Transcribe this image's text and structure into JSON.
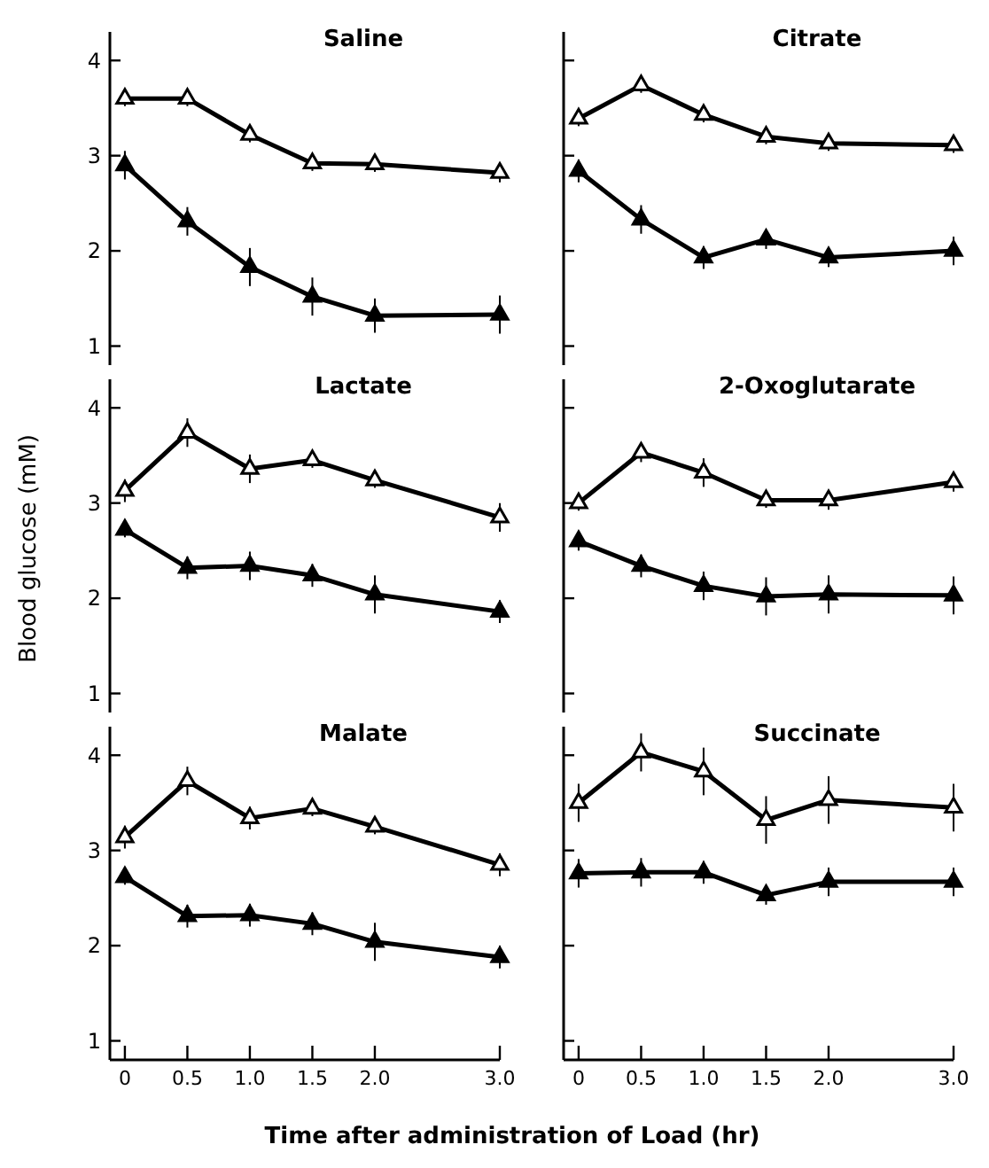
{
  "chart_data": [
    {
      "type": "line",
      "title": "Saline",
      "x": [
        0,
        0.5,
        1,
        1.5,
        2,
        3
      ],
      "xlim": [
        -0.12,
        3
      ],
      "ylim": [
        0.8,
        4.3
      ],
      "yticks": [
        1,
        2,
        3,
        4
      ],
      "tick_labels": "y",
      "marker": "triangle",
      "line_style": "solid",
      "series": [
        {
          "color": "#000000",
          "values": [
            3.6,
            3.6,
            3.22,
            2.92,
            2.91,
            2.82
          ],
          "errors": [
            0.08,
            0.08,
            0.08,
            0.08,
            0.08,
            0.1
          ]
        },
        {
          "color": "#000000",
          "values": [
            2.9,
            2.31,
            1.83,
            1.52,
            1.32,
            1.33
          ],
          "errors": [
            0.15,
            0.15,
            0.2,
            0.2,
            0.18,
            0.2
          ]
        }
      ]
    },
    {
      "type": "line",
      "title": "Citrate",
      "x": [
        0,
        0.5,
        1,
        1.5,
        2,
        3
      ],
      "xlim": [
        -0.12,
        3
      ],
      "ylim": [
        0.8,
        4.3
      ],
      "yticks": [
        1,
        2,
        3,
        4
      ],
      "tick_labels": false,
      "marker": "triangle",
      "line_style": "solid",
      "series": [
        {
          "color": "#000000",
          "values": [
            3.39,
            3.74,
            3.43,
            3.2,
            3.13,
            3.11
          ],
          "errors": [
            0.08,
            0.08,
            0.08,
            0.08,
            0.08,
            0.08
          ]
        },
        {
          "color": "#000000",
          "values": [
            2.84,
            2.33,
            1.93,
            2.12,
            1.93,
            2.0
          ],
          "errors": [
            0.12,
            0.15,
            0.12,
            0.1,
            0.1,
            0.15
          ]
        }
      ]
    },
    {
      "type": "line",
      "title": "Lactate",
      "x": [
        0,
        0.5,
        1,
        1.5,
        2,
        3
      ],
      "xlim": [
        -0.12,
        3
      ],
      "ylim": [
        0.8,
        4.3
      ],
      "yticks": [
        1,
        2,
        3,
        4
      ],
      "tick_labels": "y",
      "marker": "triangle",
      "line_style": "solid",
      "series": [
        {
          "color": "#000000",
          "values": [
            3.13,
            3.74,
            3.36,
            3.45,
            3.24,
            2.85
          ],
          "errors": [
            0.12,
            0.15,
            0.15,
            0.08,
            0.08,
            0.15
          ]
        },
        {
          "color": "#000000",
          "values": [
            2.72,
            2.32,
            2.34,
            2.24,
            2.04,
            1.86
          ],
          "errors": [
            0.08,
            0.12,
            0.15,
            0.12,
            0.2,
            0.12
          ]
        }
      ]
    },
    {
      "type": "line",
      "title": "2-Oxoglutarate",
      "ylabel": "Blood glucose (mM)",
      "x": [
        0,
        0.5,
        1,
        1.5,
        2,
        3
      ],
      "xlim": [
        -0.12,
        3
      ],
      "ylim": [
        0.8,
        4.3
      ],
      "yticks": [
        1,
        2,
        3,
        4
      ],
      "tick_labels": false,
      "marker": "triangle",
      "line_style": "solid",
      "series": [
        {
          "color": "#000000",
          "values": [
            3.0,
            3.53,
            3.32,
            3.03,
            3.03,
            3.22
          ],
          "errors": [
            0.08,
            0.1,
            0.15,
            0.08,
            0.1,
            0.1
          ]
        },
        {
          "color": "#000000",
          "values": [
            2.6,
            2.34,
            2.13,
            2.02,
            2.04,
            2.03
          ],
          "errors": [
            0.1,
            0.12,
            0.15,
            0.2,
            0.2,
            0.2
          ]
        }
      ]
    },
    {
      "type": "line",
      "title": "Malate",
      "x": [
        0,
        0.5,
        1,
        1.5,
        2,
        3
      ],
      "xlim": [
        -0.12,
        3
      ],
      "xticks": [
        {
          "value": 0,
          "label": "0"
        },
        {
          "value": 0.5,
          "label": "0.5"
        },
        {
          "value": 1,
          "label": "1.0"
        },
        {
          "value": 1.5,
          "label": "1.5"
        },
        {
          "value": 2,
          "label": "2.0"
        },
        {
          "value": 3,
          "label": "3.0"
        }
      ],
      "ylim": [
        0.8,
        4.3
      ],
      "yticks": [
        1,
        2,
        3,
        4
      ],
      "marker": "triangle",
      "line_style": "solid",
      "series": [
        {
          "color": "#000000",
          "values": [
            3.14,
            3.73,
            3.34,
            3.44,
            3.25,
            2.85
          ],
          "errors": [
            0.12,
            0.15,
            0.12,
            0.08,
            0.08,
            0.12
          ]
        },
        {
          "color": "#000000",
          "values": [
            2.72,
            2.31,
            2.32,
            2.23,
            2.04,
            1.88
          ],
          "errors": [
            0.08,
            0.12,
            0.12,
            0.12,
            0.2,
            0.12
          ]
        }
      ]
    },
    {
      "type": "line",
      "title": "Succinate",
      "xlabel": "Time after administration of Load (hr)",
      "x": [
        0,
        0.5,
        1,
        1.5,
        2,
        3
      ],
      "xlim": [
        -0.12,
        3
      ],
      "xticks": [
        {
          "value": 0,
          "label": "0"
        },
        {
          "value": 0.5,
          "label": "0.5"
        },
        {
          "value": 1,
          "label": "1.0"
        },
        {
          "value": 1.5,
          "label": "1.5"
        },
        {
          "value": 2,
          "label": "2.0"
        },
        {
          "value": 3,
          "label": "3.0"
        }
      ],
      "ylim": [
        0.8,
        4.3
      ],
      "yticks": [
        1,
        2,
        3,
        4
      ],
      "tick_labels": "x",
      "marker": "triangle",
      "line_style": "solid",
      "series": [
        {
          "color": "#000000",
          "values": [
            3.5,
            4.03,
            3.83,
            3.32,
            3.53,
            3.45
          ],
          "errors": [
            0.2,
            0.2,
            0.25,
            0.25,
            0.25,
            0.25
          ]
        },
        {
          "color": "#000000",
          "values": [
            2.76,
            2.77,
            2.77,
            2.53,
            2.67,
            2.67
          ],
          "errors": [
            0.15,
            0.15,
            0.12,
            0.1,
            0.15,
            0.15
          ]
        }
      ]
    }
  ]
}
